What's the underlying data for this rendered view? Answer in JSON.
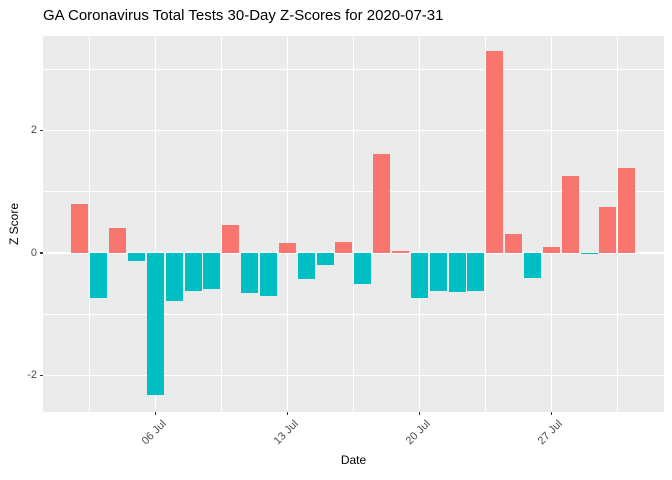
{
  "chart_data": {
    "type": "bar",
    "title": "GA Coronavirus Total Tests 30-Day Z-Scores for 2020-07-31",
    "xlabel": "Date",
    "ylabel": "Z Score",
    "legend": "none",
    "grid": "on",
    "panel_background": "#EBEBEB",
    "grid_color": "#FFFFFF",
    "bar_color_positive": "#F8766D",
    "bar_color_negative": "#00BFC4",
    "ylim": [
      -2.59,
      3.54
    ],
    "y_ticks": [
      2,
      0,
      -2
    ],
    "y_minor_ticks": [
      3,
      1,
      -1
    ],
    "x_ticks": [
      {
        "day": 6,
        "label": "06 Jul"
      },
      {
        "day": 13,
        "label": "13 Jul"
      },
      {
        "day": 20,
        "label": "20 Jul"
      },
      {
        "day": 27,
        "label": "27 Jul"
      }
    ],
    "x_minor_days": [
      2.5,
      9.5,
      16.5,
      23.5,
      30.5
    ],
    "x": [
      "2020-07-02",
      "2020-07-03",
      "2020-07-04",
      "2020-07-05",
      "2020-07-06",
      "2020-07-07",
      "2020-07-08",
      "2020-07-09",
      "2020-07-10",
      "2020-07-11",
      "2020-07-12",
      "2020-07-13",
      "2020-07-14",
      "2020-07-15",
      "2020-07-16",
      "2020-07-17",
      "2020-07-18",
      "2020-07-19",
      "2020-07-20",
      "2020-07-21",
      "2020-07-22",
      "2020-07-23",
      "2020-07-24",
      "2020-07-25",
      "2020-07-26",
      "2020-07-27",
      "2020-07-28",
      "2020-07-29",
      "2020-07-30",
      "2020-07-31"
    ],
    "values": [
      0.8,
      -0.74,
      0.4,
      -0.13,
      -2.31,
      -0.78,
      -0.62,
      -0.58,
      0.46,
      -0.65,
      -0.7,
      0.17,
      -0.42,
      -0.19,
      0.18,
      -0.5,
      1.62,
      0.04,
      -0.73,
      -0.62,
      -0.64,
      -0.62,
      3.3,
      0.31,
      -0.41,
      0.1,
      1.26,
      -0.02,
      0.75,
      1.38
    ]
  }
}
